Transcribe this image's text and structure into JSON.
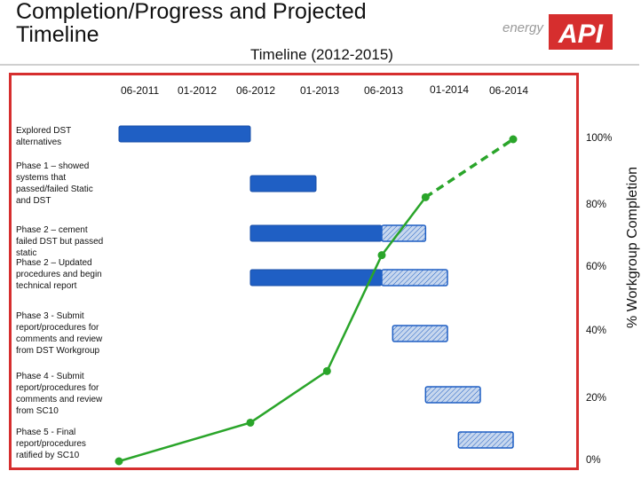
{
  "header": {
    "title_line1": "Completion/Progress and Projected",
    "title_line2": "Timeline",
    "subtitle": "Timeline (2012-2015)",
    "logo_text": "energy",
    "logo_mark": "API"
  },
  "colors": {
    "frame": "#d62e2e",
    "bar": "#1f5fc4",
    "projected_fill": "#c7d7ee",
    "line": "#2aa52a"
  },
  "chart_data": {
    "type": "gantt_with_line",
    "x_ticks": [
      "06-2011",
      "01-2012",
      "06-2012",
      "01-2013",
      "06-2013",
      "01-2014",
      "06-2014"
    ],
    "y_ticks": [
      "100%",
      "80%",
      "60%",
      "40%",
      "20%",
      "0%"
    ],
    "ylabel": "% Workgroup Completion",
    "ylim": [
      0,
      100
    ],
    "tasks": [
      {
        "label": "Explored DST alternatives",
        "start": "2011-06",
        "end": "2012-06",
        "projected_start": null,
        "projected_end": null
      },
      {
        "label": "Phase 1 – showed systems that passed/failed Static and DST",
        "start": "2012-06",
        "end": "2012-12",
        "projected_start": null,
        "projected_end": null
      },
      {
        "label": "Phase 2 – cement failed DST but passed static",
        "start": "2012-06",
        "end": "2013-06",
        "projected_start": "2013-06",
        "projected_end": "2013-10"
      },
      {
        "label": "Phase 2 – Updated procedures and begin technical report",
        "start": "2012-06",
        "end": "2013-06",
        "projected_start": "2013-06",
        "projected_end": "2013-12"
      },
      {
        "label": "Phase 3 - Submit report/procedures for comments and review from DST Workgroup",
        "start": null,
        "end": null,
        "projected_start": "2013-07",
        "projected_end": "2013-12"
      },
      {
        "label": "Phase 4 - Submit report/procedures for comments and review from SC10",
        "start": null,
        "end": null,
        "projected_start": "2013-10",
        "projected_end": "2014-03"
      },
      {
        "label": "Phase 5 - Final report/procedures ratified by SC10",
        "start": null,
        "end": null,
        "projected_start": "2014-01",
        "projected_end": "2014-06"
      }
    ],
    "actual_progress": [
      {
        "x": "2011-06",
        "y": 0
      },
      {
        "x": "2012-06",
        "y": 12
      },
      {
        "x": "2013-01",
        "y": 28
      },
      {
        "x": "2013-06",
        "y": 64
      },
      {
        "x": "2013-10",
        "y": 82
      }
    ],
    "projected_progress": [
      {
        "x": "2013-10",
        "y": 82
      },
      {
        "x": "2014-06",
        "y": 100
      }
    ]
  }
}
